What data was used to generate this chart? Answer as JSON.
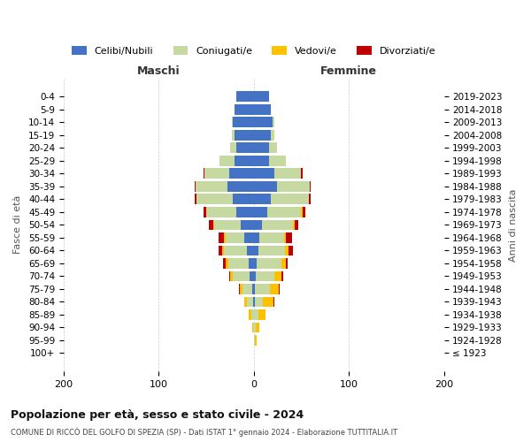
{
  "age_groups": [
    "100+",
    "95-99",
    "90-94",
    "85-89",
    "80-84",
    "75-79",
    "70-74",
    "65-69",
    "60-64",
    "55-59",
    "50-54",
    "45-49",
    "40-44",
    "35-39",
    "30-34",
    "25-29",
    "20-24",
    "15-19",
    "10-14",
    "5-9",
    "0-4"
  ],
  "birth_years": [
    "≤ 1923",
    "1924-1928",
    "1929-1933",
    "1934-1938",
    "1939-1943",
    "1944-1948",
    "1949-1953",
    "1954-1958",
    "1959-1963",
    "1964-1968",
    "1969-1973",
    "1974-1978",
    "1979-1983",
    "1984-1988",
    "1989-1993",
    "1994-1998",
    "1999-2003",
    "2004-2008",
    "2009-2013",
    "2014-2018",
    "2019-2023"
  ],
  "colors": {
    "celibe": "#4472C4",
    "coniugato": "#c5d9a0",
    "vedovo": "#ffc000",
    "divorziato": "#c00000"
  },
  "males": {
    "celibe": [
      0,
      0,
      0,
      0,
      1,
      2,
      4,
      5,
      7,
      10,
      14,
      18,
      22,
      28,
      26,
      20,
      18,
      20,
      22,
      20,
      18
    ],
    "coniugato": [
      0,
      0,
      1,
      3,
      6,
      10,
      18,
      22,
      24,
      20,
      28,
      32,
      38,
      33,
      26,
      16,
      7,
      3,
      1,
      0,
      0
    ],
    "vedovo": [
      0,
      0,
      1,
      2,
      3,
      3,
      3,
      3,
      2,
      1,
      1,
      0,
      0,
      0,
      0,
      0,
      0,
      0,
      0,
      0,
      0
    ],
    "divorziato": [
      0,
      0,
      0,
      0,
      0,
      1,
      1,
      2,
      4,
      6,
      4,
      3,
      2,
      1,
      1,
      0,
      0,
      0,
      0,
      0,
      0
    ]
  },
  "females": {
    "nubile": [
      0,
      0,
      0,
      0,
      1,
      1,
      2,
      3,
      5,
      6,
      9,
      14,
      18,
      24,
      22,
      16,
      16,
      18,
      20,
      18,
      16
    ],
    "coniugata": [
      0,
      1,
      2,
      5,
      9,
      16,
      20,
      26,
      28,
      26,
      32,
      36,
      40,
      35,
      28,
      18,
      8,
      4,
      2,
      0,
      0
    ],
    "vedova": [
      0,
      2,
      4,
      7,
      11,
      9,
      7,
      5,
      4,
      2,
      2,
      1,
      0,
      0,
      0,
      0,
      0,
      0,
      0,
      0,
      0
    ],
    "divorziata": [
      0,
      0,
      0,
      0,
      1,
      1,
      2,
      2,
      4,
      6,
      4,
      3,
      2,
      1,
      1,
      0,
      0,
      0,
      0,
      0,
      0
    ]
  },
  "xlim": 200,
  "title": "Popolazione per età, sesso e stato civile - 2024",
  "subtitle": "COMUNE DI RICCÒ DEL GOLFO DI SPEZIA (SP) - Dati ISTAT 1° gennaio 2024 - Elaborazione TUTTITALIA.IT",
  "ylabel": "Fasce di età",
  "ylabel_right": "Anni di nascita",
  "xlabel_left": "Maschi",
  "xlabel_right": "Femmine",
  "xticks": [
    -200,
    -100,
    0,
    100,
    200
  ],
  "xtick_labels": [
    "200",
    "100",
    "0",
    "100",
    "200"
  ],
  "legend_labels": [
    "Celibi/Nubili",
    "Coniugati/e",
    "Vedovi/e",
    "Divorziati/e"
  ]
}
